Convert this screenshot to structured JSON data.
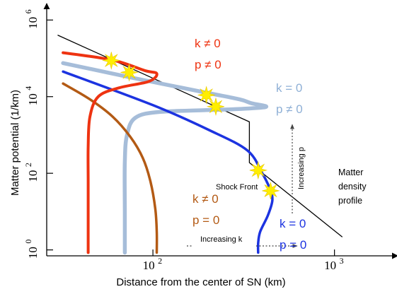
{
  "chart_data": {
    "type": "line",
    "xlabel": "Distance from the center of SN (km)",
    "ylabel": "Matter potential (1/km)",
    "x_scale": "log",
    "y_scale": "log",
    "xlim": [
      26,
      1750
    ],
    "ylim": [
      0.7,
      2000000
    ],
    "x_ticks": [
      {
        "value": 100,
        "base": "10",
        "exp": "2"
      },
      {
        "value": 1000,
        "base": "10",
        "exp": "3"
      }
    ],
    "y_ticks": [
      {
        "value": 1,
        "base": "10",
        "exp": "0"
      },
      {
        "value": 100,
        "base": "10",
        "exp": "2"
      },
      {
        "value": 10000,
        "base": "10",
        "exp": "4"
      },
      {
        "value": 1000000,
        "base": "10",
        "exp": "6"
      }
    ],
    "grid": false,
    "colors": {
      "red": "#ee3311",
      "lightblue": "#a6bdd9",
      "blue": "#1c33e0",
      "brown": "#b35a14",
      "black": "#000000",
      "star": "#ffee00"
    },
    "series": [
      {
        "key": "density",
        "color": "#000000",
        "points": [
          [
            30,
            400000
          ],
          [
            340,
            2200
          ],
          [
            340,
            190
          ],
          [
            1100,
            2.2
          ]
        ]
      },
      {
        "key": "red",
        "color": "#ee3311",
        "points": [
          [
            32,
            140000
          ],
          [
            60,
            90000
          ],
          [
            90,
            48000
          ],
          [
            105,
            40000
          ],
          [
            95,
            25000
          ],
          [
            65,
            17000
          ],
          [
            50,
            10000
          ],
          [
            45,
            3000
          ],
          [
            44,
            500
          ],
          [
            44,
            60
          ],
          [
            44,
            5
          ],
          [
            44,
            0.85
          ]
        ]
      },
      {
        "key": "lightblue",
        "color": "#a6bdd9",
        "points": [
          [
            32,
            75000
          ],
          [
            80,
            30000
          ],
          [
            200,
            12500
          ],
          [
            300,
            8500
          ],
          [
            350,
            6700
          ],
          [
            420,
            5600
          ],
          [
            380,
            5100
          ],
          [
            250,
            4600
          ],
          [
            110,
            4000
          ],
          [
            80,
            2800
          ],
          [
            72,
            1000
          ],
          [
            70,
            200
          ],
          [
            70,
            10
          ],
          [
            70,
            0.85
          ]
        ]
      },
      {
        "key": "blue",
        "color": "#1c33e0",
        "points": [
          [
            32,
            45000
          ],
          [
            100,
            6000
          ],
          [
            200,
            1400
          ],
          [
            330,
            400
          ],
          [
            400,
            100
          ],
          [
            440,
            40
          ],
          [
            455,
            20
          ],
          [
            430,
            8
          ],
          [
            390,
            3
          ],
          [
            380,
            1.5
          ],
          [
            380,
            0.85
          ]
        ]
      },
      {
        "key": "brown",
        "color": "#b35a14",
        "points": [
          [
            32,
            22000
          ],
          [
            45,
            8500
          ],
          [
            60,
            3000
          ],
          [
            75,
            900
          ],
          [
            88,
            250
          ],
          [
            97,
            60
          ],
          [
            103,
            12
          ],
          [
            105,
            3
          ],
          [
            105,
            0.85
          ]
        ]
      }
    ],
    "crossings": [
      [
        59,
        88000
      ],
      [
        74,
        43000
      ],
      [
        197,
        11000
      ],
      [
        222,
        5500
      ],
      [
        380,
        120
      ],
      [
        445,
        35
      ]
    ],
    "annotations": {
      "k_nonzero_p_nonzero": {
        "line1": "k ≠ 0",
        "line2": "p ≠ 0"
      },
      "k_zero_p_nonzero": {
        "line1": "k = 0",
        "line2": "p ≠  0"
      },
      "k_nonzero_p_zero": {
        "line1": "k ≠  0",
        "line2": "p = 0"
      },
      "k_zero_p_zero": {
        "line1": "k = 0",
        "line2": "p = 0"
      },
      "shock_front": "Shock Front",
      "increasing_p": "Increasing p",
      "increasing_k": "Increasing k",
      "matter_density": {
        "line1": "Matter",
        "line2": "density",
        "line3": "profile"
      }
    }
  }
}
